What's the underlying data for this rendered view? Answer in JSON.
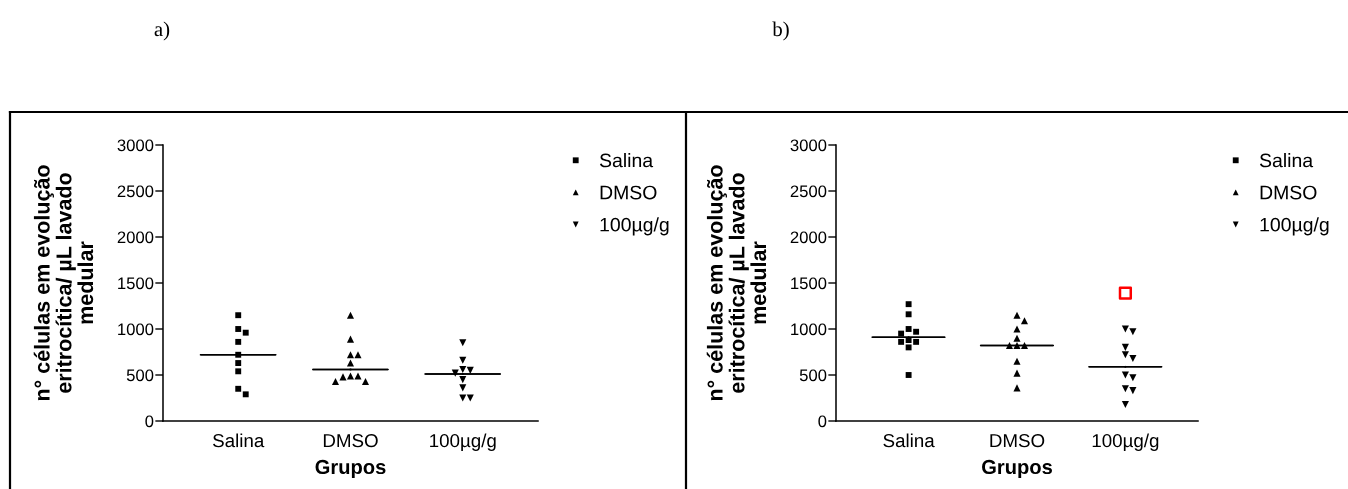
{
  "chart_data": [
    {
      "type": "scatter",
      "title": "a)",
      "xlabel": "Grupos",
      "ylabel": "n° células em evolução\neritrocítica/ µL lavado\nmedular",
      "categories": [
        "Salina",
        "DMSO",
        "100µg/g"
      ],
      "ylim": [
        0,
        3000
      ],
      "yticks": [
        0,
        500,
        1000,
        1500,
        2000,
        2500,
        3000
      ],
      "legend": "top right",
      "series": [
        {
          "name": "Salina",
          "color": "#000000",
          "marker": "square",
          "x": [
            "Salina",
            "Salina",
            "Salina",
            "Salina",
            "Salina",
            "Salina",
            "Salina",
            "Salina",
            "Salina"
          ],
          "values": [
            1150,
            1000,
            960,
            860,
            720,
            630,
            540,
            350,
            290
          ]
        },
        {
          "name": "DMSO",
          "color": "#000000",
          "marker": "triangle",
          "x": [
            "DMSO",
            "DMSO",
            "DMSO",
            "DMSO",
            "DMSO",
            "DMSO",
            "DMSO",
            "DMSO",
            "DMSO",
            "DMSO"
          ],
          "values": [
            1150,
            890,
            720,
            720,
            630,
            490,
            480,
            430,
            430,
            490
          ]
        },
        {
          "name": "100µg/g",
          "color": "#000000",
          "marker": "triangle_down",
          "x": [
            "100µg/g",
            "100µg/g",
            "100µg/g",
            "100µg/g",
            "100µg/g",
            "100µg/g",
            "100µg/g",
            "100µg/g",
            "100µg/g"
          ],
          "values": [
            850,
            660,
            550,
            560,
            520,
            450,
            360,
            250,
            250
          ]
        },
        {
          "type": "box",
          "color": "#000000",
          "boxes": [
            {
              "low": 720,
              "q1": 720,
              "median": 720,
              "q3": 720,
              "high": 720
            },
            {
              "low": 560,
              "q1": 560,
              "median": 560,
              "q3": 560,
              "high": 560
            },
            {
              "low": 510,
              "q1": 510,
              "median": 510,
              "q3": 510,
              "high": 510
            }
          ]
        }
      ]
    },
    {
      "type": "scatter",
      "title": "b)",
      "xlabel": "Grupos",
      "ylabel": "n° células em evolução\neritrocítica/ µL lavado\nmedular",
      "categories": [
        "Salina",
        "DMSO",
        "100µg/g"
      ],
      "ylim": [
        0,
        3000
      ],
      "yticks": [
        0,
        500,
        1000,
        1500,
        2000,
        2500,
        3000
      ],
      "legend": "top right",
      "series": [
        {
          "name": "Salina",
          "color": "#000000",
          "marker": "square",
          "x": [
            "Salina",
            "Salina",
            "Salina",
            "Salina",
            "Salina",
            "Salina",
            "Salina",
            "Salina",
            "Salina",
            "Salina"
          ],
          "values": [
            1270,
            1160,
            1000,
            950,
            970,
            880,
            860,
            860,
            800,
            500
          ]
        },
        {
          "name": "DMSO",
          "color": "#000000",
          "marker": "triangle",
          "x": [
            "DMSO",
            "DMSO",
            "DMSO",
            "DMSO",
            "DMSO",
            "DMSO",
            "DMSO",
            "DMSO",
            "DMSO",
            "DMSO"
          ],
          "values": [
            1150,
            1090,
            1000,
            900,
            820,
            820,
            820,
            650,
            520,
            360
          ]
        },
        {
          "name": "100µg/g",
          "color": "#000000",
          "marker": "triangle_down",
          "x": [
            "100µg/g",
            "100µg/g",
            "100µg/g",
            "100µg/g",
            "100µg/g",
            "100µg/g",
            "100µg/g",
            "100µg/g",
            "100µg/g",
            "100µg/g"
          ],
          "values": [
            1000,
            970,
            800,
            720,
            680,
            500,
            470,
            350,
            330,
            180
          ]
        },
        {
          "color": "#ff0000",
          "marker": "square",
          "x": [
            "100µg/g"
          ],
          "values": [
            1390
          ]
        },
        {
          "type": "box",
          "color": "#000000",
          "boxes": [
            {
              "low": 910,
              "q1": 910,
              "median": 910,
              "q3": 910,
              "high": 910
            },
            {
              "low": 820,
              "q1": 820,
              "median": 820,
              "q3": 820,
              "high": 820
            },
            {
              "low": 590,
              "q1": 590,
              "median": 590,
              "q3": 590,
              "high": 590
            }
          ]
        }
      ]
    }
  ]
}
